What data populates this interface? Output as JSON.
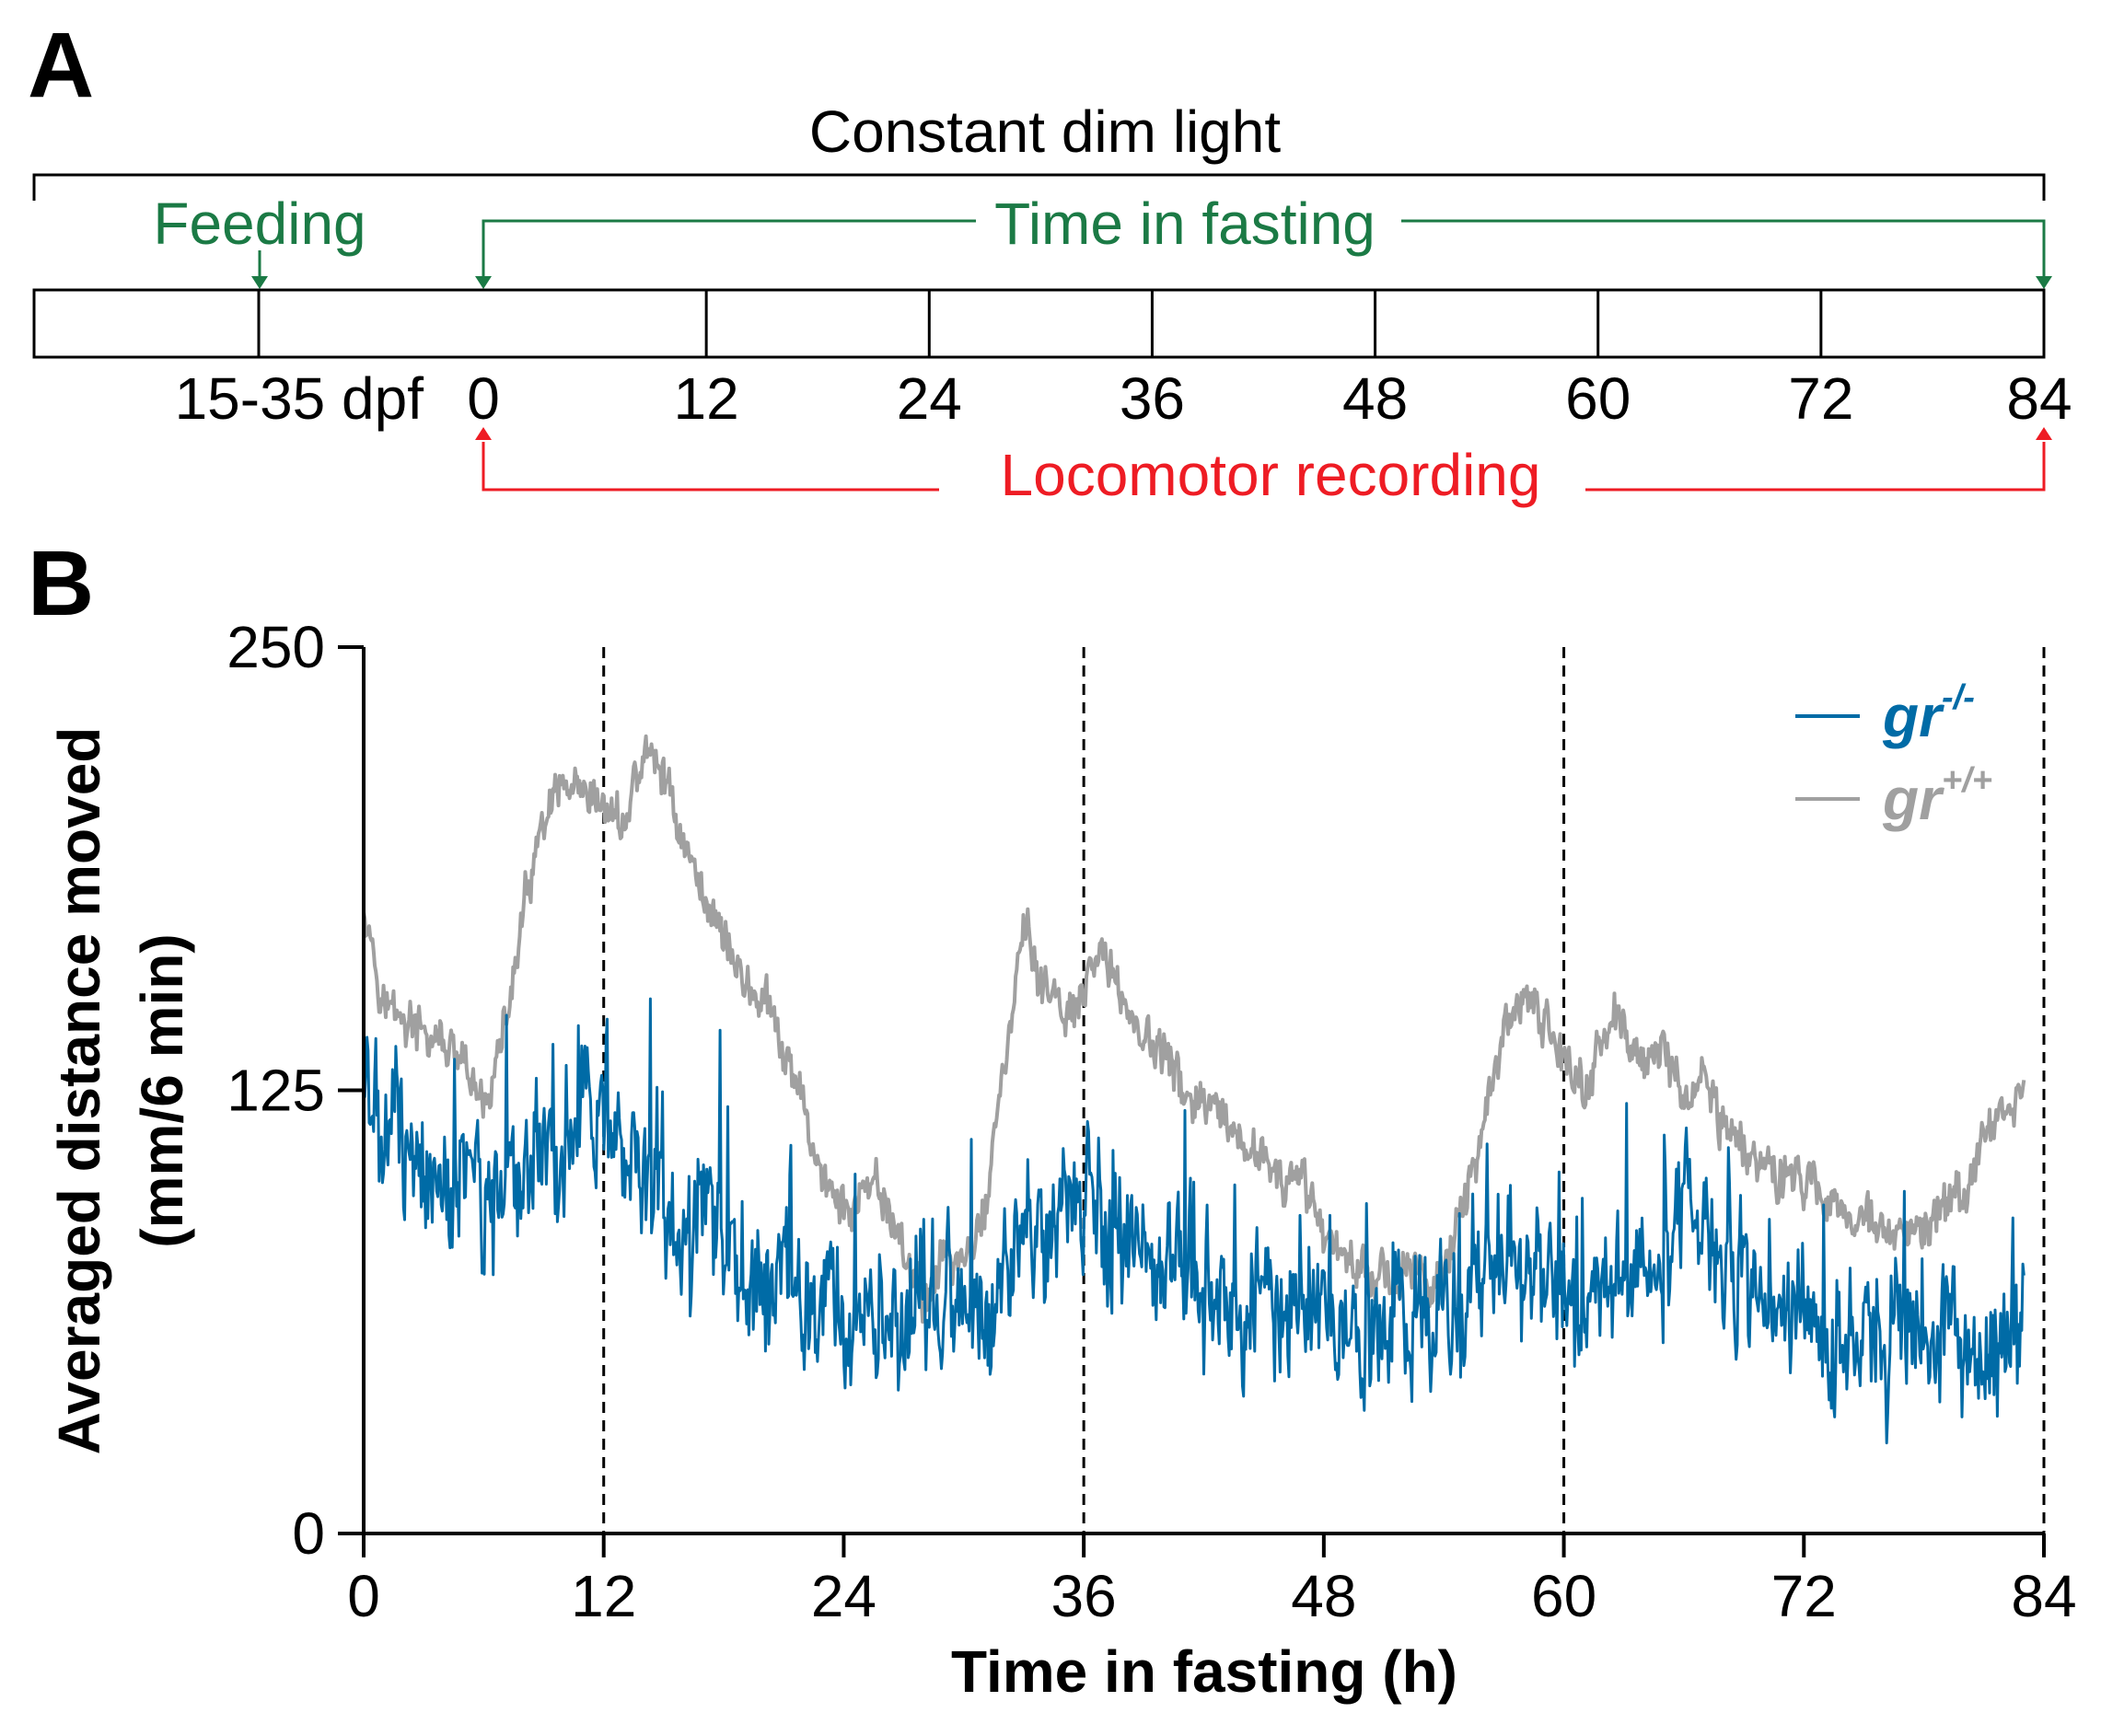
{
  "panel_a": {
    "label": "A",
    "constant_light": "Constant dim light",
    "feeding": "Feeding",
    "time_in_fasting": "Time in fasting",
    "locomotor": "Locomotor recording",
    "age": "15-35 dpf",
    "ticks": [
      "0",
      "12",
      "24",
      "36",
      "48",
      "60",
      "72",
      "84"
    ],
    "colors": {
      "green": "#1b7a45",
      "red": "#ee1c24",
      "black": "#000000"
    }
  },
  "panel_b": {
    "label": "B"
  },
  "chart_data": {
    "type": "line",
    "title": "",
    "xlabel": "Time in fasting (h)",
    "ylabel_line1": "Averaged distance moved",
    "ylabel_line2": "(mm/6 min)",
    "xlim": [
      0,
      84
    ],
    "ylim": [
      0,
      250
    ],
    "xticks": [
      0,
      12,
      24,
      36,
      48,
      60,
      72,
      84
    ],
    "yticks": [
      0,
      125,
      250
    ],
    "vlines": [
      12,
      36,
      60,
      84
    ],
    "legend_position": "top-right",
    "series": [
      {
        "name": "gr",
        "superscript": "+/+",
        "color": "#a0a0a0",
        "x": [
          0,
          1,
          2,
          3,
          4,
          5,
          6,
          7,
          8,
          9,
          10,
          11,
          12,
          13,
          14,
          15,
          16,
          17,
          18,
          19,
          20,
          21,
          22,
          23,
          24,
          25,
          26,
          27,
          28,
          29,
          30,
          31,
          32,
          33,
          34,
          35,
          36,
          37,
          38,
          39,
          40,
          41,
          42,
          43,
          44,
          45,
          46,
          47,
          48,
          49,
          50,
          51,
          52,
          53,
          54,
          55,
          56,
          57,
          58,
          59,
          60,
          61,
          62,
          63,
          64,
          65,
          66,
          67,
          68,
          69,
          70,
          71,
          72,
          73,
          74,
          75,
          76,
          77,
          78,
          79,
          80,
          81,
          82,
          83
        ],
        "y": [
          180,
          150,
          145,
          140,
          138,
          130,
          120,
          140,
          175,
          200,
          210,
          205,
          205,
          200,
          220,
          215,
          195,
          180,
          170,
          155,
          150,
          135,
          120,
          100,
          90,
          95,
          95,
          80,
          65,
          80,
          75,
          90,
          130,
          170,
          155,
          145,
          150,
          165,
          150,
          140,
          135,
          125,
          120,
          115,
          105,
          110,
          95,
          100,
          85,
          80,
          75,
          73,
          72,
          72,
          75,
          90,
          120,
          140,
          150,
          145,
          135,
          125,
          140,
          145,
          130,
          140,
          120,
          130,
          115,
          110,
          105,
          100,
          100,
          95,
          92,
          90,
          85,
          82,
          85,
          92,
          95,
          110,
          120,
          125
        ]
      },
      {
        "name": "gr",
        "superscript": "-/-",
        "color": "#006ba6",
        "x": [
          0,
          1,
          2,
          3,
          4,
          5,
          6,
          7,
          8,
          9,
          10,
          11,
          12,
          13,
          14,
          15,
          16,
          17,
          18,
          19,
          20,
          21,
          22,
          23,
          24,
          25,
          26,
          27,
          28,
          29,
          30,
          31,
          32,
          33,
          34,
          35,
          36,
          37,
          38,
          39,
          40,
          41,
          42,
          43,
          44,
          45,
          46,
          47,
          48,
          49,
          50,
          51,
          52,
          53,
          54,
          55,
          56,
          57,
          58,
          59,
          60,
          61,
          62,
          63,
          64,
          65,
          66,
          67,
          68,
          69,
          70,
          71,
          72,
          73,
          74,
          75,
          76,
          77,
          78,
          79,
          80,
          81,
          82,
          83
        ],
        "y": [
          125,
          115,
          110,
          105,
          100,
          100,
          95,
          95,
          100,
          105,
          110,
          120,
          105,
          100,
          95,
          95,
          90,
          85,
          80,
          78,
          75,
          70,
          65,
          62,
          60,
          60,
          60,
          62,
          65,
          62,
          60,
          65,
          75,
          85,
          95,
          90,
          95,
          90,
          85,
          80,
          80,
          75,
          70,
          68,
          65,
          68,
          62,
          65,
          62,
          62,
          60,
          60,
          60,
          60,
          62,
          65,
          68,
          70,
          70,
          70,
          70,
          68,
          70,
          70,
          72,
          85,
          100,
          85,
          75,
          70,
          68,
          60,
          58,
          55,
          55,
          57,
          55,
          58,
          55,
          58,
          56,
          57,
          56,
          58
        ]
      }
    ]
  }
}
